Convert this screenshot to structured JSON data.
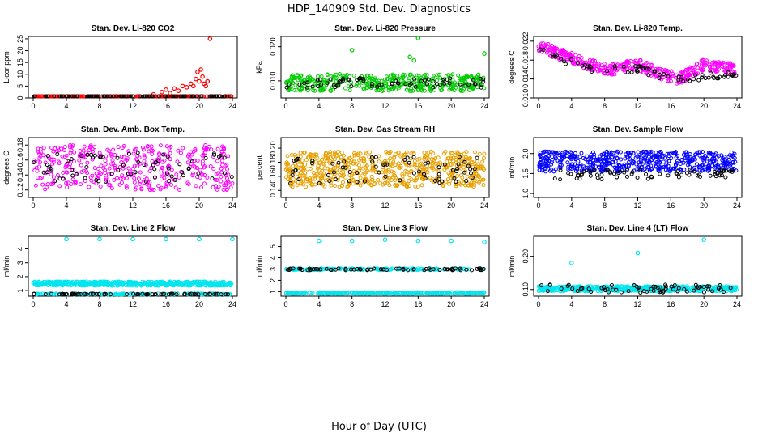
{
  "page_title": "HDP_140909  Std. Dev. Diagnostics",
  "x_axis_label": "Hour of Day (UTC)",
  "colors": {
    "red": "#ff0000",
    "green": "#00cc00",
    "magenta": "#ff00ff",
    "orange": "#e8a000",
    "blue": "#0000ff",
    "cyan": "#00e5ee",
    "black": "#000000"
  },
  "chart_data": [
    {
      "type": "scatter",
      "title": "Stan. Dev. Li-820 CO2",
      "ylabel": "Licor ppm",
      "xlim": [
        0,
        24
      ],
      "xticks": [
        "0",
        "4",
        "8",
        "12",
        "16",
        "20",
        "24"
      ],
      "ylim": [
        0,
        26
      ],
      "yticks": [
        "0",
        "5",
        "10",
        "15",
        "20",
        "25"
      ],
      "series": [
        {
          "color": "#ff0000",
          "band": [
            0.1,
            0.6
          ],
          "n": 200,
          "spikes": [
            [
              14.5,
              1.5
            ],
            [
              15.5,
              2.5
            ],
            [
              16,
              3.5
            ],
            [
              16.5,
              2
            ],
            [
              17,
              4
            ],
            [
              17.5,
              3
            ],
            [
              18,
              5
            ],
            [
              18.5,
              4.5
            ],
            [
              19,
              6
            ],
            [
              19.3,
              5
            ],
            [
              19.6,
              8
            ],
            [
              19.8,
              11
            ],
            [
              20,
              7
            ],
            [
              20.2,
              12
            ],
            [
              20.4,
              9
            ],
            [
              20.6,
              6
            ],
            [
              20.8,
              5
            ],
            [
              21,
              7
            ],
            [
              21.3,
              25
            ]
          ]
        },
        {
          "color": "#000000",
          "band": [
            0.0,
            0.4
          ],
          "n": 100
        }
      ]
    },
    {
      "type": "scatter",
      "title": "Stan. Dev. Li-820 Pressure",
      "ylabel": "kPa",
      "xlim": [
        0,
        24
      ],
      "xticks": [
        "0",
        "4",
        "8",
        "12",
        "16",
        "20",
        "24"
      ],
      "ylim": [
        0.005,
        0.023
      ],
      "yticks": [
        "0.010",
        "0.020"
      ],
      "ytick_values": [
        0.01,
        0.02
      ],
      "series": [
        {
          "color": "#00cc00",
          "band": [
            0.007,
            0.012
          ],
          "n": 400,
          "spikes": [
            [
              8,
              0.019
            ],
            [
              15,
              0.017
            ],
            [
              15.5,
              0.016
            ],
            [
              16,
              0.023
            ],
            [
              24,
              0.018
            ]
          ]
        },
        {
          "color": "#000000",
          "band": [
            0.008,
            0.011
          ],
          "n": 70
        }
      ]
    },
    {
      "type": "scatter",
      "title": "Stan. Dev. Li-820 Temp.",
      "ylabel": "degrees C",
      "xlim": [
        0,
        24
      ],
      "xticks": [
        "0",
        "4",
        "8",
        "12",
        "16",
        "20",
        "24"
      ],
      "ylim": [
        0.01,
        0.023
      ],
      "yticks": [
        "0.010",
        "0.014",
        "0.018",
        "0.022"
      ],
      "ytick_values": [
        0.01,
        0.014,
        0.018,
        0.022
      ],
      "series": [
        {
          "color": "#ff00ff",
          "trend": [
            [
              0,
              0.021
            ],
            [
              3,
              0.019
            ],
            [
              6,
              0.017
            ],
            [
              9,
              0.016
            ],
            [
              12,
              0.017
            ],
            [
              15,
              0.015
            ],
            [
              17,
              0.014
            ],
            [
              20,
              0.017
            ],
            [
              24,
              0.016
            ]
          ],
          "spread": 0.0012,
          "n": 400
        },
        {
          "color": "#000000",
          "trend": [
            [
              0,
              0.02
            ],
            [
              6,
              0.016
            ],
            [
              12,
              0.016
            ],
            [
              17,
              0.014
            ],
            [
              24,
              0.015
            ]
          ],
          "spread": 0.0008,
          "n": 70
        }
      ]
    },
    {
      "type": "scatter",
      "title": "Stan. Dev. Amb. Box Temp.",
      "ylabel": "degrees C",
      "xlim": [
        0,
        24
      ],
      "xticks": [
        "0",
        "4",
        "8",
        "12",
        "16",
        "20",
        "24"
      ],
      "ylim": [
        0.11,
        0.19
      ],
      "yticks": [
        "0.12",
        "0.14",
        "0.16",
        "0.18"
      ],
      "ytick_values": [
        0.12,
        0.14,
        0.16,
        0.18
      ],
      "series": [
        {
          "color": "#ff00ff",
          "band": [
            0.12,
            0.18
          ],
          "n": 380
        },
        {
          "color": "#000000",
          "band": [
            0.13,
            0.17
          ],
          "n": 70
        }
      ]
    },
    {
      "type": "scatter",
      "title": "Stan. Dev. Gas Stream RH",
      "ylabel": "percent",
      "xlim": [
        0,
        24
      ],
      "xticks": [
        "0",
        "4",
        "8",
        "12",
        "16",
        "20",
        "24"
      ],
      "ylim": [
        0.13,
        0.215
      ],
      "yticks": [
        "0.14",
        "0.16",
        "0.18",
        "0.20"
      ],
      "ytick_values": [
        0.14,
        0.16,
        0.18,
        0.2
      ],
      "series": [
        {
          "color": "#e8a000",
          "band": [
            0.145,
            0.195
          ],
          "n": 600
        },
        {
          "color": "#000000",
          "band": [
            0.15,
            0.19
          ],
          "n": 70
        }
      ]
    },
    {
      "type": "scatter",
      "title": "Stan. Dev. Sample Flow",
      "ylabel": "ml/min",
      "xlim": [
        0,
        24
      ],
      "xticks": [
        "0",
        "4",
        "8",
        "12",
        "16",
        "20",
        "24"
      ],
      "ylim": [
        0.9,
        2.4
      ],
      "yticks": [
        "1.0",
        "1.5",
        "2.0"
      ],
      "ytick_values": [
        1.0,
        1.5,
        2.0
      ],
      "series": [
        {
          "color": "#0000ff",
          "band": [
            1.55,
            2.05
          ],
          "n": 500
        },
        {
          "color": "#000000",
          "band": [
            1.35,
            1.6
          ],
          "n": 70
        }
      ]
    },
    {
      "type": "scatter",
      "title": "Stan. Dev. Line 2 Flow",
      "ylabel": "ml/min",
      "xlim": [
        0,
        24
      ],
      "xticks": [
        "0",
        "4",
        "8",
        "12",
        "16",
        "20",
        "24"
      ],
      "ylim": [
        0.6,
        4.9
      ],
      "yticks": [
        "1",
        "2",
        "3",
        "4"
      ],
      "ytick_values": [
        1,
        2,
        3,
        4
      ],
      "series": [
        {
          "color": "#00e5ee",
          "band": [
            1.35,
            1.65
          ],
          "n": 500,
          "spikes": [
            [
              4,
              4.7
            ],
            [
              8,
              4.7
            ],
            [
              12,
              4.7
            ],
            [
              16,
              4.7
            ],
            [
              20,
              4.7
            ],
            [
              24,
              4.7
            ]
          ]
        },
        {
          "color": "#00e5ee",
          "band": [
            0.7,
            0.8
          ],
          "n": 150
        },
        {
          "color": "#000000",
          "band": [
            0.72,
            0.78
          ],
          "n": 70
        }
      ]
    },
    {
      "type": "scatter",
      "title": "Stan. Dev. Line 3 Flow",
      "ylabel": "ml/min",
      "xlim": [
        0,
        24
      ],
      "xticks": [
        "0",
        "4",
        "8",
        "12",
        "16",
        "20",
        "24"
      ],
      "ylim": [
        0.6,
        5.9
      ],
      "yticks": [
        "1",
        "2",
        "3",
        "4",
        "5"
      ],
      "ytick_values": [
        1,
        2,
        3,
        4,
        5
      ],
      "series": [
        {
          "color": "#00e5ee",
          "band": [
            0.8,
            0.95
          ],
          "n": 300,
          "spikes": [
            [
              4,
              5.5
            ],
            [
              8,
              5.5
            ],
            [
              12,
              5.6
            ],
            [
              16,
              5.5
            ],
            [
              20,
              5.5
            ],
            [
              24,
              5.4
            ]
          ]
        },
        {
          "color": "#00e5ee",
          "band": [
            2.9,
            3.05
          ],
          "n": 150
        },
        {
          "color": "#000000",
          "band": [
            2.9,
            3.05
          ],
          "n": 70
        }
      ]
    },
    {
      "type": "scatter",
      "title": "Stan. Dev. Line 4 (LT) Flow",
      "ylabel": "ml/min",
      "xlim": [
        0,
        24
      ],
      "xticks": [
        "0",
        "4",
        "8",
        "12",
        "16",
        "20",
        "24"
      ],
      "ylim": [
        0.08,
        0.26
      ],
      "yticks": [
        "0.10",
        "0.20"
      ],
      "ytick_values": [
        0.1,
        0.2
      ],
      "series": [
        {
          "color": "#00e5ee",
          "band": [
            0.095,
            0.11
          ],
          "n": 450,
          "spikes": [
            [
              4,
              0.18
            ],
            [
              12,
              0.21
            ],
            [
              20,
              0.25
            ]
          ]
        },
        {
          "color": "#000000",
          "band": [
            0.09,
            0.115
          ],
          "n": 70
        }
      ]
    }
  ]
}
